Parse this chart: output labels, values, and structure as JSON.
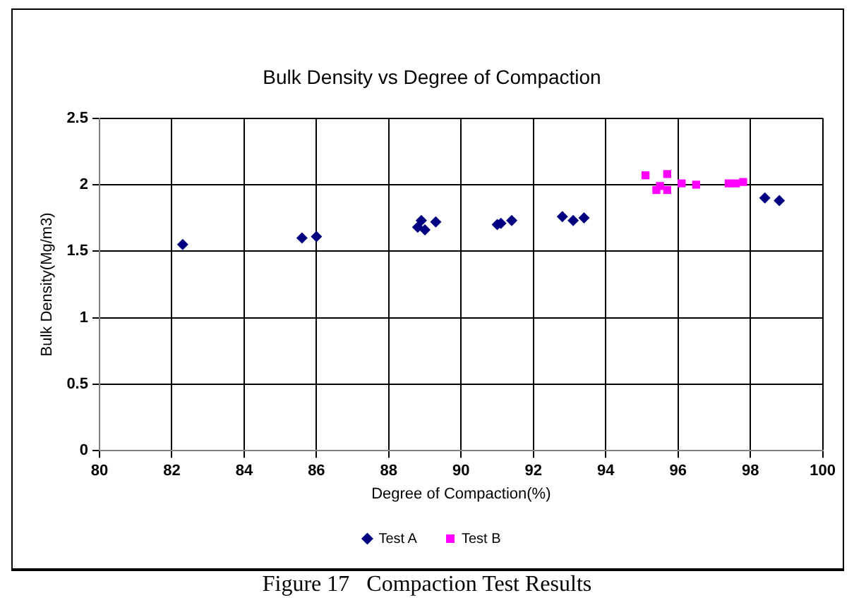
{
  "chart_data": {
    "type": "scatter",
    "title": "Bulk Density vs Degree of Compaction",
    "xlabel": "Degree of Compaction(%)",
    "ylabel": "Bulk Density(Mg/m3)",
    "xlim": [
      80,
      100
    ],
    "xticks": [
      80,
      82,
      84,
      86,
      88,
      90,
      92,
      94,
      96,
      98,
      100
    ],
    "ylim": [
      0,
      2.5
    ],
    "yticks": [
      0,
      0.5,
      1,
      1.5,
      2,
      2.5
    ],
    "grid": true,
    "legend": "bottom",
    "annotations": [
      "Figure 17   Compaction Test Results"
    ],
    "series": [
      {
        "name": "Test A",
        "color": "#000080",
        "marker": "diamond",
        "x": [
          82.3,
          85.6,
          86.0,
          88.8,
          88.9,
          89.0,
          89.3,
          91.0,
          91.1,
          91.4,
          92.8,
          93.1,
          93.4,
          98.4,
          98.8
        ],
        "values": [
          1.55,
          1.6,
          1.61,
          1.68,
          1.73,
          1.66,
          1.72,
          1.7,
          1.71,
          1.73,
          1.76,
          1.73,
          1.75,
          1.9,
          1.88
        ]
      },
      {
        "name": "Test B",
        "color": "#ff00ff",
        "marker": "square",
        "x": [
          95.1,
          95.4,
          95.5,
          95.7,
          95.7,
          96.1,
          96.5,
          97.4,
          97.6,
          97.8
        ],
        "values": [
          2.07,
          1.96,
          1.99,
          2.08,
          1.96,
          2.01,
          2.0,
          2.01,
          2.01,
          2.02
        ]
      }
    ]
  }
}
